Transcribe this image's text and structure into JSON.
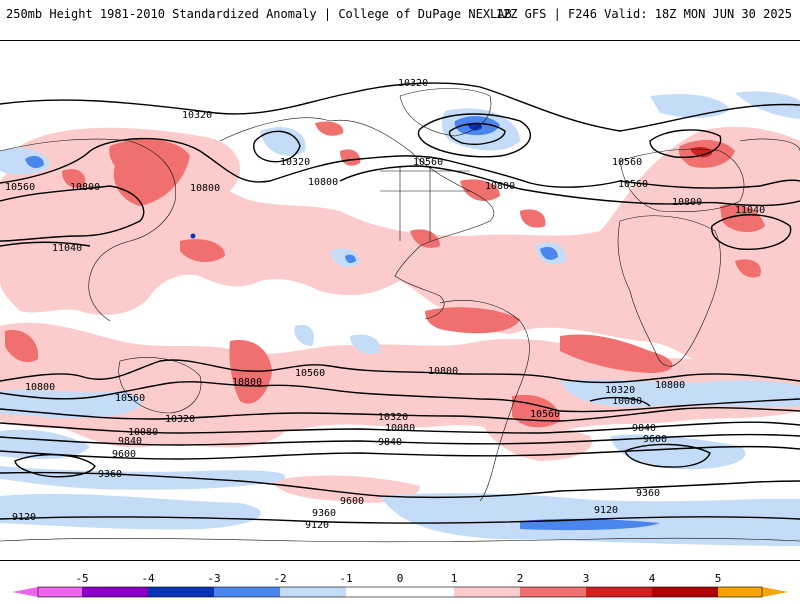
{
  "header": {
    "title_left": "250mb Height 1981-2010 Standardized Anomaly | College of DuPage NEXLAB",
    "title_right": "12Z GFS | F246 Valid: 18Z MON JUN 30 2025"
  },
  "colors": {
    "neg5": "#ee66ee",
    "neg4": "#8a00c8",
    "neg3": "#0a33b8",
    "neg2": "#4a86ee",
    "neg1": "#c4dcf8",
    "pos1": "#fccccc",
    "pos2": "#f07070",
    "pos3": "#d22020",
    "pos4": "#b00000",
    "pos5": "#f7a400",
    "contour": "#000000",
    "land_outline": "#111111"
  },
  "colorbar": {
    "labels": [
      "-5",
      "-4",
      "-3",
      "-2",
      "-1",
      "0",
      "1",
      "2",
      "3",
      "4",
      "5"
    ]
  },
  "contour_labels": [
    {
      "text": "10320"
    },
    {
      "text": "10320"
    },
    {
      "text": "10320"
    },
    {
      "text": "10560"
    },
    {
      "text": "10560"
    },
    {
      "text": "10560"
    },
    {
      "text": "10800"
    },
    {
      "text": "10800"
    },
    {
      "text": "10800"
    },
    {
      "text": "10800"
    },
    {
      "text": "10560"
    },
    {
      "text": "10320"
    },
    {
      "text": "10800"
    },
    {
      "text": "11040"
    },
    {
      "text": "11040"
    },
    {
      "text": "10800"
    },
    {
      "text": "10560"
    },
    {
      "text": "10800"
    },
    {
      "text": "10560"
    },
    {
      "text": "10800"
    },
    {
      "text": "10800"
    },
    {
      "text": "10320"
    },
    {
      "text": "10320"
    },
    {
      "text": "10080"
    },
    {
      "text": "10080"
    },
    {
      "text": "9840"
    },
    {
      "text": "9840"
    },
    {
      "text": "10560"
    },
    {
      "text": "10320"
    },
    {
      "text": "10080"
    },
    {
      "text": "9600"
    },
    {
      "text": "9840"
    },
    {
      "text": "9600"
    },
    {
      "text": "9360"
    },
    {
      "text": "9600"
    },
    {
      "text": "9360"
    },
    {
      "text": "9360"
    },
    {
      "text": "9120"
    },
    {
      "text": "9120"
    },
    {
      "text": "9120"
    }
  ]
}
